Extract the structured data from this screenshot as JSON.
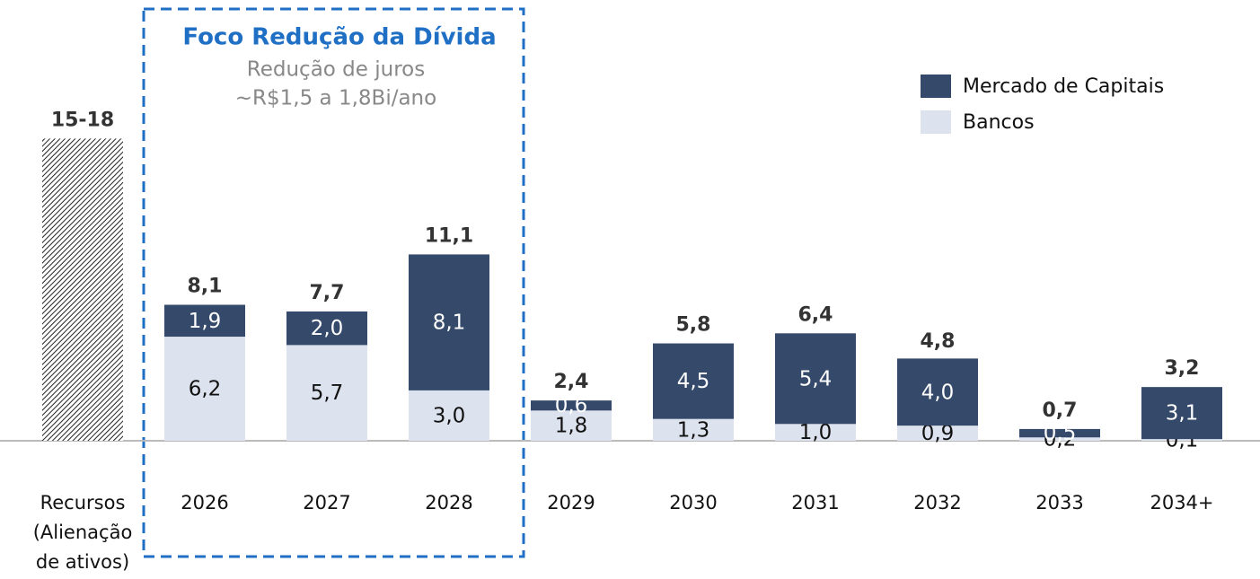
{
  "chart_data": {
    "type": "stacked_bar",
    "title": "Foco Redução da Dívida",
    "subtitle": [
      "Redução de juros",
      "~R$1,5 a 1,8Bi/ano"
    ],
    "categories": [
      "Recursos (Alienação de ativos)",
      "2026",
      "2027",
      "2028",
      "2029",
      "2030",
      "2031",
      "2032",
      "2033",
      "2034+"
    ],
    "range_values": [
      15,
      18
    ],
    "totals": [
      null,
      8.1,
      7.7,
      11.1,
      2.4,
      5.8,
      6.4,
      4.8,
      0.7,
      3.2
    ],
    "total_labels": [
      "15-18",
      "8,1",
      "7,7",
      "11,1",
      "2,4",
      "5,8",
      "6,4",
      "4,8",
      "0,7",
      "3,2"
    ],
    "series": [
      {
        "name": "Bancos",
        "color": "#dde3ee",
        "values": [
          null,
          6.2,
          5.7,
          3.0,
          1.8,
          1.3,
          1.0,
          0.9,
          0.2,
          0.1
        ],
        "value_labels": [
          null,
          "6,2",
          "5,7",
          "3,0",
          "1,8",
          "1,3",
          "1,0",
          "0,9",
          "0,2",
          "0,1"
        ]
      },
      {
        "name": "Mercado de Capitais",
        "color": "#354a6b",
        "values": [
          null,
          1.9,
          2.0,
          8.1,
          0.6,
          4.5,
          5.4,
          4.0,
          0.5,
          3.1
        ],
        "value_labels": [
          null,
          "1,9",
          "2,0",
          "8,1",
          "0,6",
          "4,5",
          "5,4",
          "4,0",
          "0,5",
          "3,1"
        ]
      }
    ],
    "ylim": [
      0,
      20
    ],
    "legend": "upper right"
  }
}
